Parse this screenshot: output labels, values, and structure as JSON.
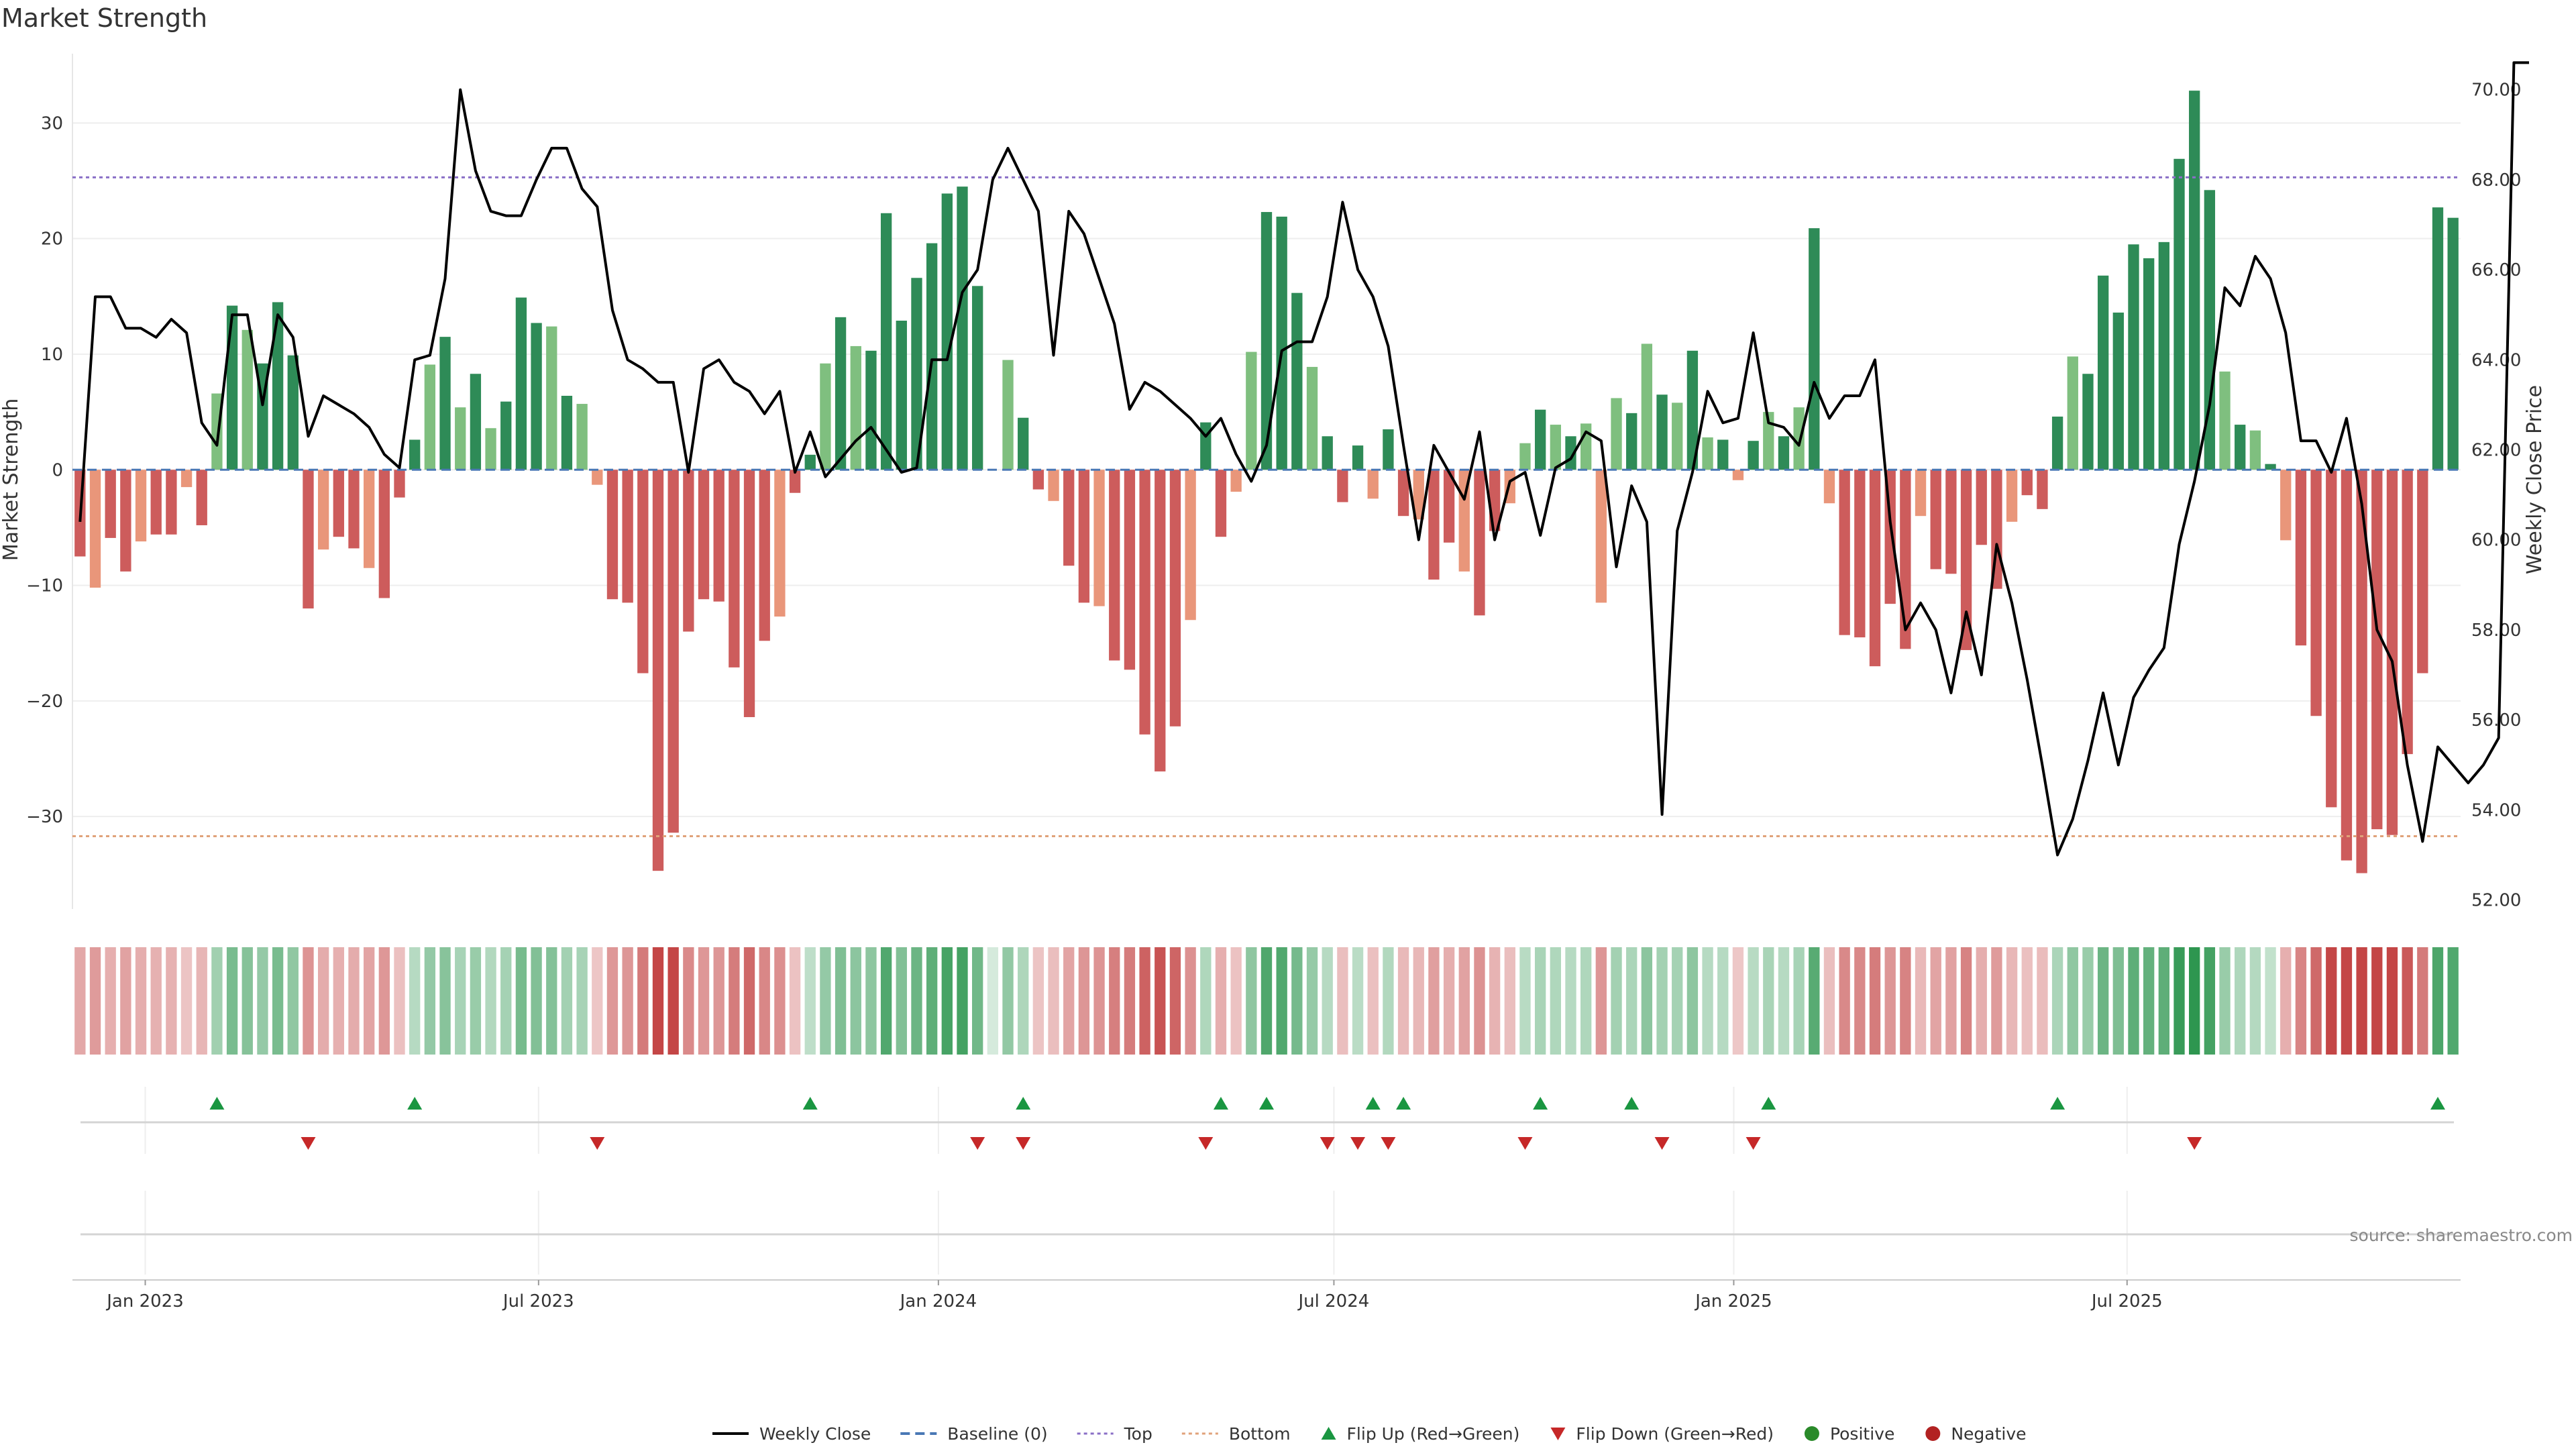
{
  "chart_data": {
    "type": "bar",
    "title": "Market Strength",
    "ylabel": "Market Strength",
    "y2label": "Weekly Close Price",
    "ylim": [
      -38,
      36
    ],
    "y2lim": [
      51.8,
      70.8
    ],
    "yticks": [
      30,
      20,
      10,
      0,
      -10,
      -20,
      -30
    ],
    "yticks_labels": [
      "30",
      "20",
      "10",
      "0",
      "−10",
      "−20",
      "−30"
    ],
    "y2ticks": [
      70,
      68,
      66,
      64,
      62,
      60,
      58,
      56,
      54,
      52
    ],
    "y2ticks_labels": [
      "70.00",
      "68.00",
      "66.00",
      "64.00",
      "62.00",
      "60.00",
      "58.00",
      "56.00",
      "54.00",
      "52.00"
    ],
    "x_start": "2022-12-02",
    "x_step_days": 7,
    "xticks": [
      {
        "date": "2023-01-01",
        "label": "Jan 2023"
      },
      {
        "date": "2023-07-01",
        "label": "Jul 2023"
      },
      {
        "date": "2024-01-01",
        "label": "Jan 2024"
      },
      {
        "date": "2024-07-01",
        "label": "Jul 2024"
      },
      {
        "date": "2025-01-01",
        "label": "Jan 2025"
      },
      {
        "date": "2025-07-01",
        "label": "Jul 2025"
      }
    ],
    "top_threshold": 25.3,
    "bottom_threshold": -31.7,
    "grid": true,
    "legend_position": "bottom-center",
    "colors": {
      "positive_strong": "#2e8b57",
      "positive_light": "#7fbf7f",
      "negative_strong": "#cd5c5c",
      "negative_light": "#e9967a",
      "price_line": "#000000",
      "baseline": "#4a78b5",
      "top": "#8a6fc7",
      "bottom": "#e0a27a",
      "flip_up": "#1a9641",
      "flip_down": "#c62828",
      "positive_marker": "#2a8a2a",
      "negative_marker": "#b22222"
    },
    "strength": [
      -7.5,
      -10.2,
      -5.9,
      -8.8,
      -6.2,
      -5.6,
      -5.6,
      -1.5,
      -4.8,
      6.6,
      14.2,
      12.1,
      9.2,
      14.5,
      9.9,
      -12.0,
      -6.9,
      -5.8,
      -6.8,
      -8.5,
      -11.1,
      -2.4,
      2.6,
      9.1,
      11.5,
      5.4,
      8.3,
      3.6,
      5.9,
      14.9,
      12.7,
      12.4,
      6.4,
      5.7,
      -1.3,
      -11.2,
      -11.5,
      -17.6,
      -34.7,
      -31.4,
      -14.0,
      -11.2,
      -11.4,
      -17.1,
      -21.4,
      -14.8,
      -12.7,
      -2.0,
      1.3,
      9.2,
      13.2,
      10.7,
      10.3,
      22.2,
      12.9,
      16.6,
      19.6,
      23.9,
      24.5,
      15.9,
      0,
      9.5,
      4.5,
      -1.7,
      -2.7,
      -8.3,
      -11.5,
      -11.8,
      -16.5,
      -17.3,
      -22.9,
      -26.1,
      -22.2,
      -13.0,
      4.1,
      -5.8,
      -1.9,
      10.2,
      22.3,
      21.9,
      15.3,
      8.9,
      2.9,
      -2.8,
      2.1,
      -2.5,
      3.5,
      -4.0,
      -4.3,
      -9.5,
      -6.3,
      -8.8,
      -12.6,
      -5.3,
      -2.9,
      2.3,
      5.2,
      3.9,
      2.9,
      4.0,
      -11.5,
      6.2,
      4.9,
      10.9,
      6.5,
      5.8,
      10.3,
      2.8,
      2.6,
      -0.9,
      2.5,
      5.0,
      2.9,
      5.4,
      20.9,
      -2.9,
      -14.3,
      -14.5,
      -17.0,
      -11.6,
      -15.5,
      -4.0,
      -8.6,
      -9.0,
      -15.6,
      -6.5,
      -10.3,
      -4.5,
      -2.2,
      -3.4,
      4.6,
      9.8,
      8.3,
      16.8,
      13.6,
      19.5,
      18.3,
      19.7,
      26.9,
      32.8,
      24.2,
      8.5,
      3.9,
      3.4,
      0.5,
      -6.1,
      -15.2,
      -21.3,
      -29.2,
      -33.8,
      -34.9,
      -31.1,
      -31.6,
      -24.6,
      -17.6,
      22.7,
      21.8
    ],
    "close": [
      60.4,
      65.4,
      65.4,
      64.7,
      64.7,
      64.5,
      64.9,
      64.6,
      62.6,
      62.1,
      65.0,
      65.0,
      63.0,
      65.0,
      64.5,
      62.3,
      63.2,
      63.0,
      62.8,
      62.5,
      61.9,
      61.6,
      64.0,
      64.1,
      65.8,
      70.0,
      68.2,
      67.3,
      67.2,
      67.2,
      68.0,
      68.7,
      68.7,
      67.8,
      67.4,
      65.1,
      64.0,
      63.8,
      63.5,
      63.5,
      61.5,
      63.8,
      64.0,
      63.5,
      63.3,
      62.8,
      63.3,
      61.5,
      62.4,
      61.4,
      61.8,
      62.2,
      62.5,
      62.0,
      61.5,
      61.6,
      64.0,
      64.0,
      65.5,
      66.0,
      68.0,
      68.7,
      68.0,
      67.3,
      64.1,
      67.3,
      66.8,
      65.8,
      64.8,
      62.9,
      63.5,
      63.3,
      63.0,
      62.7,
      62.3,
      62.7,
      61.9,
      61.3,
      62.1,
      64.2,
      64.4,
      64.4,
      65.4,
      67.5,
      66.0,
      65.4,
      64.3,
      62.1,
      60.0,
      62.1,
      61.5,
      60.9,
      62.4,
      60.0,
      61.3,
      61.5,
      60.1,
      61.6,
      61.8,
      62.4,
      62.2,
      59.4,
      61.2,
      60.4,
      53.9,
      60.2,
      61.5,
      63.3,
      62.6,
      62.7,
      64.6,
      62.6,
      62.5,
      62.1,
      63.5,
      62.7,
      63.2,
      63.2,
      64.0,
      60.4,
      58.0,
      58.6,
      58.0,
      56.6,
      58.4,
      57.0,
      59.9,
      58.6,
      56.9,
      55.0,
      53.0,
      53.8,
      55.1,
      56.6,
      55.0,
      56.5,
      57.1,
      57.6,
      59.9,
      61.3,
      63.0,
      65.6,
      65.2,
      66.3,
      65.8,
      64.6,
      62.2,
      62.2,
      61.5,
      62.7,
      60.8,
      58.0,
      57.3,
      55.0,
      53.3,
      55.4,
      55.0,
      54.6,
      55.0,
      55.6,
      70.6,
      70.6
    ],
    "flip_up_weeks": [
      9,
      22,
      48,
      62,
      75,
      78,
      85,
      87,
      96,
      102,
      111,
      130,
      155
    ],
    "flip_down_weeks": [
      15,
      34,
      59,
      62,
      74,
      82,
      84,
      86,
      95,
      104,
      110,
      139
    ],
    "source": "source: sharemaestro.com",
    "legend": [
      {
        "key": "close",
        "label": "Weekly Close",
        "type": "solid-line",
        "color": "#000000"
      },
      {
        "key": "baseline",
        "label": "Baseline (0)",
        "type": "dashed-line",
        "color": "#4a78b5"
      },
      {
        "key": "top",
        "label": "Top",
        "type": "dotted-line",
        "color": "#8a6fc7"
      },
      {
        "key": "bottom",
        "label": "Bottom",
        "type": "dotted-line",
        "color": "#e0a27a"
      },
      {
        "key": "flip_up",
        "label": "Flip Up (Red→Green)",
        "type": "tri-up",
        "color": "#1a9641"
      },
      {
        "key": "flip_down",
        "label": "Flip Down (Green→Red)",
        "type": "tri-down",
        "color": "#c62828"
      },
      {
        "key": "positive",
        "label": "Positive",
        "type": "circle",
        "color": "#2a8a2a"
      },
      {
        "key": "negative",
        "label": "Negative",
        "type": "circle",
        "color": "#b22222"
      }
    ]
  }
}
